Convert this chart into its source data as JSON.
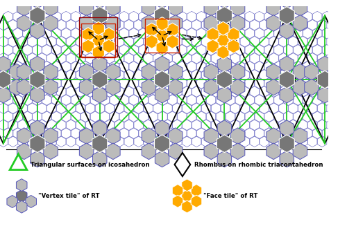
{
  "bg_color": "#ffffff",
  "green_color": "#22cc22",
  "blue_color": "#5555bb",
  "black_color": "#000000",
  "gray_dark": "#777777",
  "gray_mid": "#999999",
  "gray_light": "#bbbbbb",
  "orange_color": "#ffaa00",
  "red_color": "#cc2200",
  "dark_red": "#990000",
  "legend": {
    "tri_label": "Triangular surfaces on icosahedron",
    "rhombus_label": "Rhombus on rhombic triacontahedron",
    "vertex_label": "\"Vertex tile\" of RT",
    "face_label": "\"Face tile\" of RT"
  },
  "fig_width": 5.0,
  "fig_height": 3.37,
  "dpi": 100
}
